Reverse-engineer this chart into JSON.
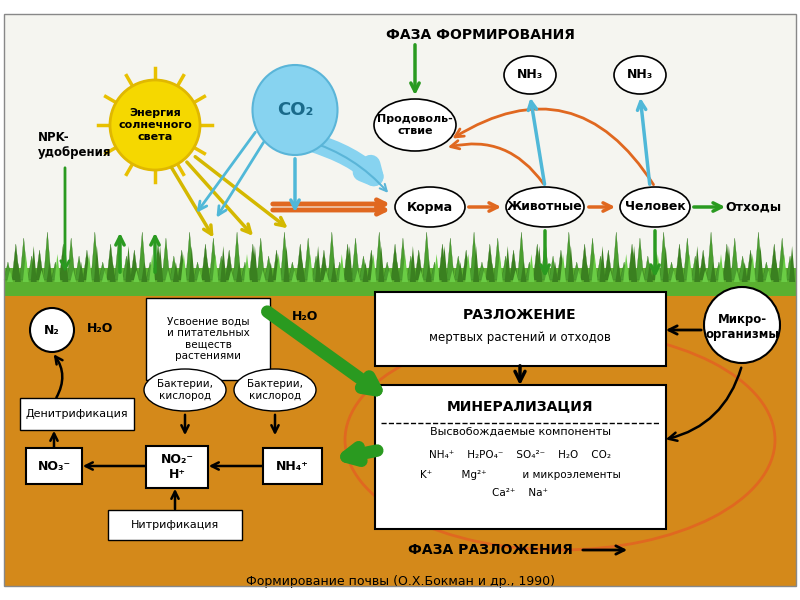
{
  "title": "Формирование почвы (О.Х.Бокман и др., 1990)",
  "phase_formation": "ФАЗА ФОРМИРОВАНИЯ",
  "phase_decomp": "ФАЗА РАЗЛОЖЕНИЯ",
  "sun_text": "Энергия\nсолнечного\nсвета",
  "co2_text": "CO₂",
  "npk_text": "NPK-\nудобрения",
  "food_text": "Продоволь-\nствие",
  "feed_text": "Корма",
  "animals_text": "Животные",
  "human_text": "Человек",
  "waste_text": "Отходы",
  "n2_text": "N₂",
  "h2o_text1": "H₂O",
  "h2o_text2": "H₂O",
  "nh3_text": "NH₃",
  "denitrif_text": "Денитрификация",
  "assimil_text": "Усвоение воды\nи питательных\nвеществ\nрастениями",
  "decomp_title": "РАЗЛОЖЕНИЕ",
  "decomp_sub": "мертвых растений и отходов",
  "mineral_text": "МИНЕРАЛИЗАЦИЯ",
  "released_text": "Высвобождаемые компоненты",
  "microorg_text": "Микро-\nорганизмы",
  "bacteria1_text": "Бактерии,\nкислород",
  "bacteria2_text": "Бактерии,\nкислород",
  "nitrif_text": "Нитрификация",
  "no3_text": "NO₃⁻",
  "no2h_text": "NO₂⁻\nH⁺",
  "nh4_text": "NH₄⁺",
  "comp_line1": "NH₄⁺    H₂PO₄⁻    SO₄²⁻    H₂O    CO₂",
  "comp_line2": "K⁺         Mg²⁺           и микроэлементы",
  "comp_line3": "Ca²⁺    Na⁺",
  "sun_color": "#f5d800",
  "co2_color": "#87d3f0",
  "sky_color": "#f5f5f0",
  "soil_color": "#d4891a",
  "grass_color1": "#4a9e2f",
  "grass_color2": "#3a8020",
  "grass_color3": "#6acd45",
  "orange": "#e06820",
  "green_arr": "#2a9a20",
  "cyan_arr": "#50b8d8",
  "yellow_arr": "#d4b800"
}
